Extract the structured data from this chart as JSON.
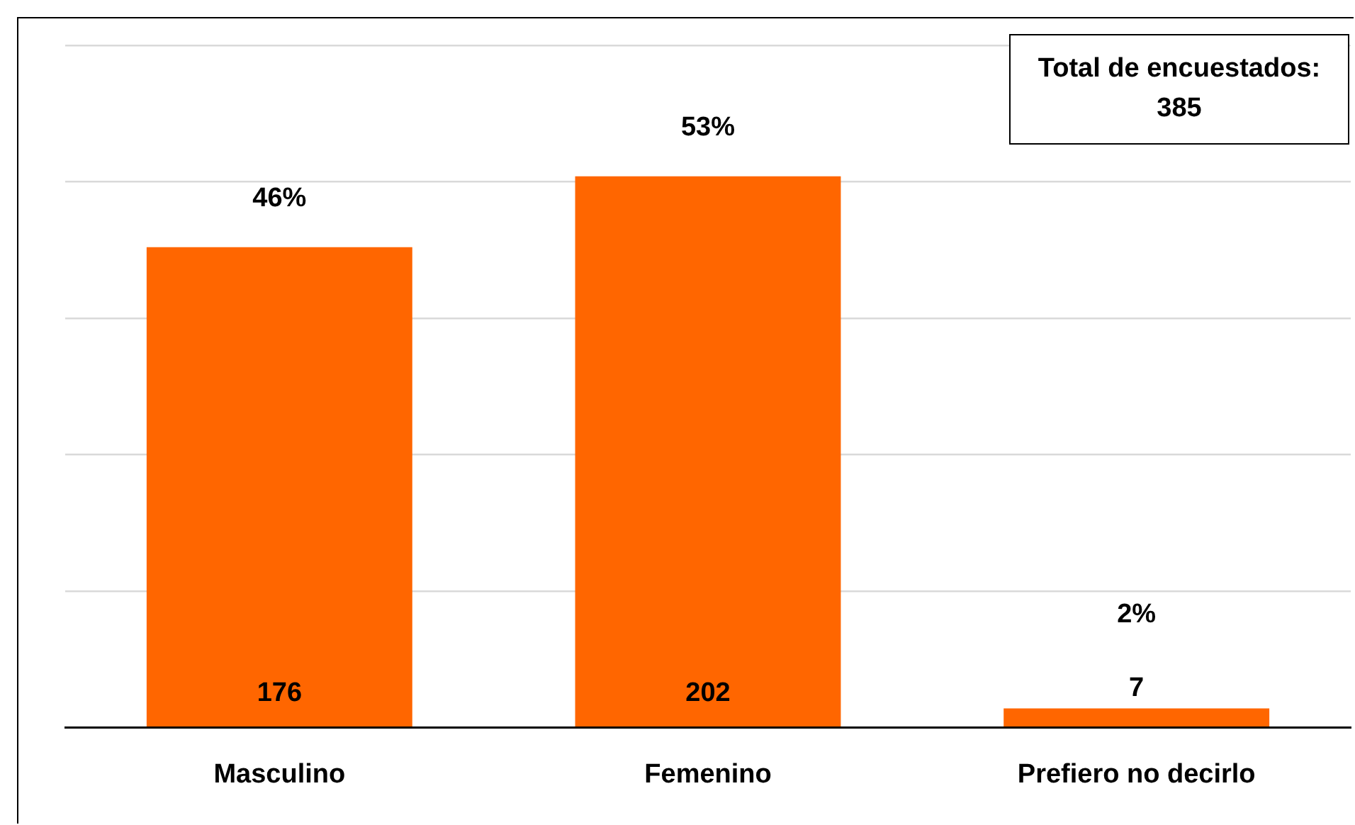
{
  "chart_data": {
    "type": "bar",
    "categories": [
      "Masculino",
      "Femenino",
      "Prefiero no decirlo"
    ],
    "values": [
      176,
      202,
      7
    ],
    "color": "#ff6600",
    "ylim": [
      0,
      250
    ],
    "yticks": [
      {
        "value": 0,
        "label": null
      },
      {
        "value": 50,
        "label": null
      },
      {
        "value": 100,
        "label": null
      },
      {
        "value": 150,
        "label": null
      },
      {
        "value": 200,
        "label": null
      },
      {
        "value": 250,
        "label": null
      }
    ],
    "grid": "y",
    "tick_labels": "x",
    "data_labels": true,
    "legend": false,
    "annotations": [
      {
        "text": "46%",
        "x": "Masculino",
        "y": 176
      },
      {
        "text": "53%",
        "x": "Femenino",
        "y": 202
      },
      {
        "text": "2%",
        "x": "Prefiero no decirlo",
        "y": 7
      },
      "Total de encuestados:\n385"
    ]
  }
}
